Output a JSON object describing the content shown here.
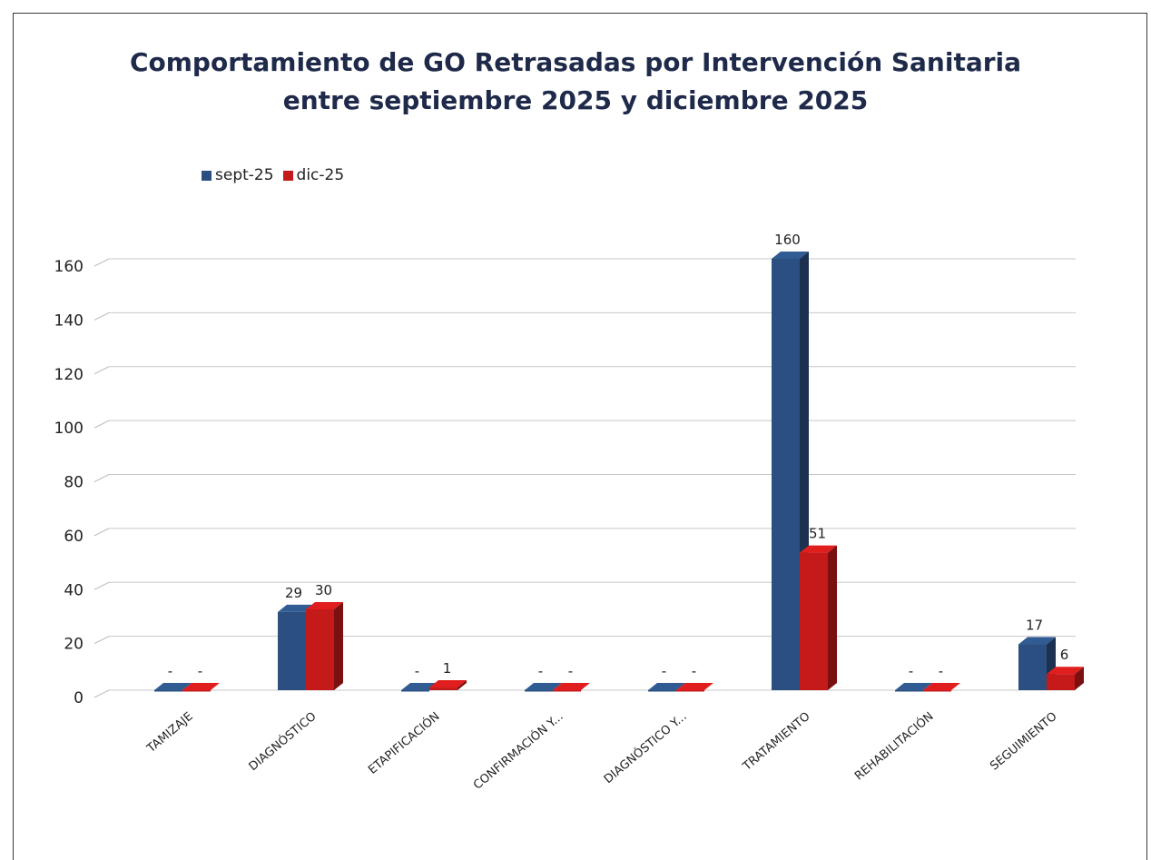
{
  "chart_data": {
    "type": "bar",
    "title_line1": "Comportamiento de GO Retrasadas por Intervención Sanitaria",
    "title_line2": "entre septiembre 2025 y diciembre 2025",
    "categories": [
      "TAMIZAJE",
      "DIAGNÓSTICO",
      "ETAPIFICACIÓN",
      "CONFIRMACIÓN Y...",
      "DIAGNÓSTICO Y...",
      "TRATAMIENTO",
      "REHABILITACIÓN",
      "SEGUIMIENTO"
    ],
    "series": [
      {
        "name": "sept-25",
        "color": "#2b4f80",
        "values": [
          0,
          29,
          0,
          0,
          0,
          160,
          0,
          17
        ],
        "labels": [
          "-",
          "29",
          "-",
          "-",
          "-",
          "160",
          "-",
          "17"
        ]
      },
      {
        "name": "dic-25",
        "color": "#c41a1a",
        "values": [
          0,
          30,
          1,
          0,
          0,
          51,
          0,
          6
        ],
        "labels": [
          "-",
          "30",
          "1",
          "-",
          "-",
          "51",
          "-",
          "6"
        ]
      }
    ],
    "yticks": [
      0,
      20,
      40,
      60,
      80,
      100,
      120,
      140,
      160
    ],
    "ylim": [
      0,
      160
    ],
    "xlabel": "",
    "ylabel": "",
    "legend_position": "top-left",
    "grid": true
  }
}
